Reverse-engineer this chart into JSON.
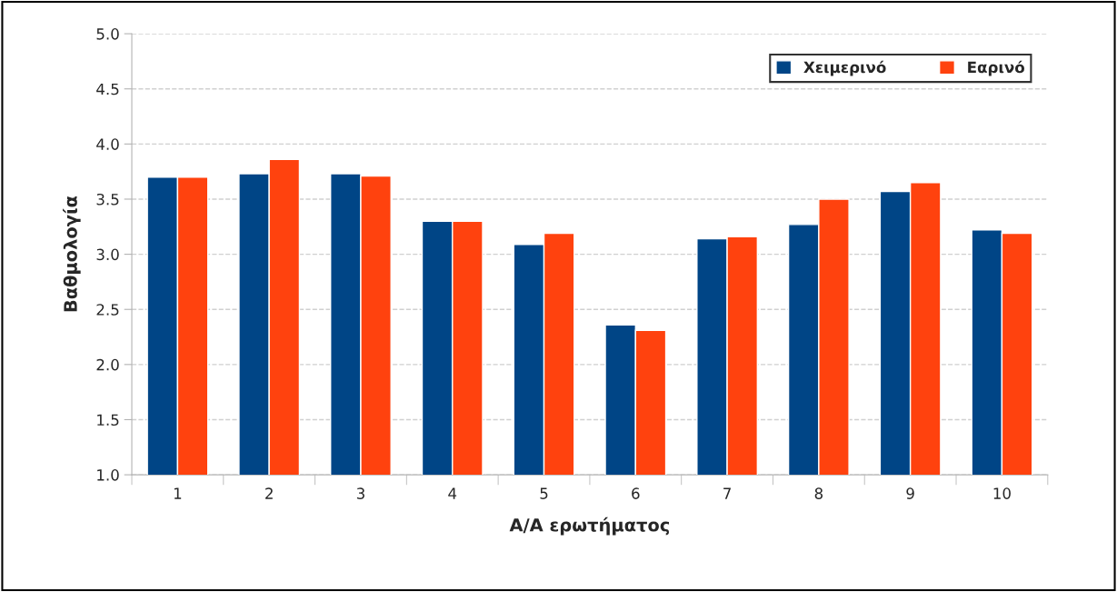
{
  "chart_data": {
    "type": "bar",
    "xlabel": "Α/Α ερωτήματος",
    "ylabel": "Βαθμολογία",
    "categories": [
      "1",
      "2",
      "3",
      "4",
      "5",
      "6",
      "7",
      "8",
      "9",
      "10"
    ],
    "series": [
      {
        "name": "Χειμερινό",
        "color": "#004586",
        "values": [
          3.7,
          3.73,
          3.73,
          3.3,
          3.09,
          2.36,
          3.14,
          3.27,
          3.57,
          3.22
        ]
      },
      {
        "name": "Εαρινό",
        "color": "#ff420e",
        "values": [
          3.7,
          3.86,
          3.71,
          3.3,
          3.19,
          2.31,
          3.16,
          3.5,
          3.65,
          3.19
        ]
      }
    ],
    "ylim": [
      1.0,
      5.0
    ],
    "yticks": [
      {
        "value": 1.0,
        "label": "1.0"
      },
      {
        "value": 1.5,
        "label": "1.5"
      },
      {
        "value": 2.0,
        "label": "2.0"
      },
      {
        "value": 2.5,
        "label": "2.5"
      },
      {
        "value": 3.0,
        "label": "3.0"
      },
      {
        "value": 3.5,
        "label": "3.5"
      },
      {
        "value": 4.0,
        "label": "4.0"
      },
      {
        "value": 4.5,
        "label": "4.5"
      },
      {
        "value": 5.0,
        "label": "5.0"
      }
    ],
    "grid": "y",
    "legend": "top right"
  }
}
